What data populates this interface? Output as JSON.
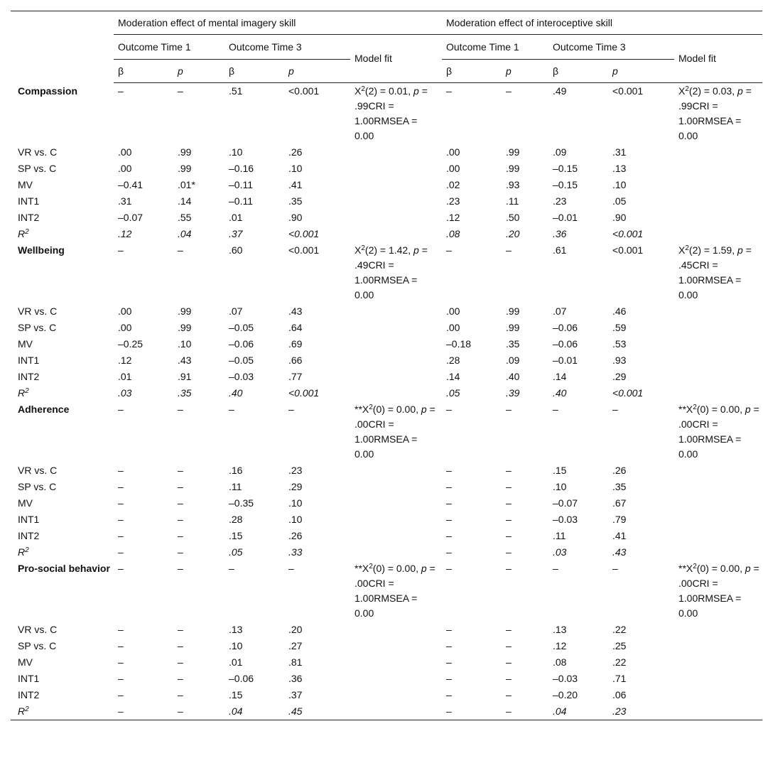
{
  "header": {
    "groups": [
      {
        "title": "Moderation effect of mental imagery skill",
        "outcomes": [
          "Outcome Time 1",
          "Outcome Time 3"
        ],
        "model_fit": "Model fit",
        "stats": [
          "β",
          "p",
          "β",
          "p"
        ]
      },
      {
        "title": "Moderation effect of interoceptive skill",
        "outcomes": [
          "Outcome Time 1",
          "Outcome Time 3"
        ],
        "model_fit": "Model fit",
        "stats": [
          "β",
          "p",
          "β",
          "p"
        ]
      }
    ]
  },
  "sections": [
    {
      "label": "Compassion",
      "cells": [
        "–",
        "–",
        ".51",
        "<0.001",
        "–",
        "–",
        ".49",
        "<0.001"
      ],
      "fit": [
        {
          "pre": "X",
          "sup": "2",
          "mid": "(2) = 0.01, ",
          "it": "p",
          "post": " = .99CRI = 1.00RMSEA = 0.00"
        },
        {
          "pre": "X",
          "sup": "2",
          "mid": "(2) = 0.03, ",
          "it": "p",
          "post": " = .99CRI = 1.00RMSEA = 0.00"
        }
      ],
      "rows": [
        {
          "label": "VR vs. C",
          "cells": [
            ".00",
            ".99",
            ".10",
            ".26",
            ".00",
            ".99",
            ".09",
            ".31"
          ]
        },
        {
          "label": "SP vs. C",
          "cells": [
            ".00",
            ".99",
            "–0.16",
            ".10",
            ".00",
            ".99",
            "–0.15",
            ".13"
          ]
        },
        {
          "label": "MV",
          "cells": [
            "–0.41",
            ".01*",
            "–0.11",
            ".41",
            ".02",
            ".93",
            "–0.15",
            ".10"
          ]
        },
        {
          "label": "INT1",
          "cells": [
            ".31",
            ".14",
            "–0.11",
            ".35",
            ".23",
            ".11",
            ".23",
            ".05"
          ]
        },
        {
          "label": "INT2",
          "cells": [
            "–0.07",
            ".55",
            ".01",
            ".90",
            ".12",
            ".50",
            "–0.01",
            ".90"
          ]
        },
        {
          "label": {
            "base": "R",
            "sup": "2"
          },
          "cells": [
            ".12",
            ".04",
            ".37",
            "<0.001",
            ".08",
            ".20",
            ".36",
            "<0.001"
          ]
        }
      ]
    },
    {
      "label": "Wellbeing",
      "cells": [
        "–",
        "–",
        ".60",
        "<0.001",
        "–",
        "–",
        ".61",
        "<0.001"
      ],
      "fit": [
        {
          "pre": "X",
          "sup": "2",
          "mid": "(2) = 1.42, ",
          "it": "p",
          "post": " = .49CRI = 1.00RMSEA = 0.00"
        },
        {
          "pre": "X",
          "sup": "2",
          "mid": "(2) = 1.59, ",
          "it": "p",
          "post": " = .45CRI = 1.00RMSEA = 0.00"
        }
      ],
      "rows": [
        {
          "label": "VR vs. C",
          "cells": [
            ".00",
            ".99",
            ".07",
            ".43",
            ".00",
            ".99",
            ".07",
            ".46"
          ]
        },
        {
          "label": "SP vs. C",
          "cells": [
            ".00",
            ".99",
            "–0.05",
            ".64",
            ".00",
            ".99",
            "–0.06",
            ".59"
          ]
        },
        {
          "label": "MV",
          "cells": [
            "–0.25",
            ".10",
            "–0.06",
            ".69",
            "–0.18",
            ".35",
            "–0.06",
            ".53"
          ]
        },
        {
          "label": "INT1",
          "cells": [
            ".12",
            ".43",
            "–0.05",
            ".66",
            ".28",
            ".09",
            "–0.01",
            ".93"
          ]
        },
        {
          "label": "INT2",
          "cells": [
            ".01",
            ".91",
            "–0.03",
            ".77",
            ".14",
            ".40",
            ".14",
            ".29"
          ]
        },
        {
          "label": {
            "base": "R",
            "sup": "2"
          },
          "cells": [
            ".03",
            ".35",
            ".40",
            "<0.001",
            ".05",
            ".39",
            ".40",
            "<0.001"
          ]
        }
      ]
    },
    {
      "label": "Adherence",
      "cells": [
        "–",
        "–",
        "–",
        "–",
        "–",
        "–",
        "–",
        "–"
      ],
      "fit": [
        {
          "pre": "**X",
          "sup": "2",
          "mid": "(0) = 0.00, ",
          "it": "p",
          "post": " = .00CRI = 1.00RMSEA = 0.00"
        },
        {
          "pre": "**X",
          "sup": "2",
          "mid": "(0) = 0.00, ",
          "it": "p",
          "post": " = .00CRI = 1.00RMSEA = 0.00"
        }
      ],
      "rows": [
        {
          "label": "VR vs. C",
          "cells": [
            "–",
            "–",
            ".16",
            ".23",
            "–",
            "–",
            ".15",
            ".26"
          ]
        },
        {
          "label": "SP vs. C",
          "cells": [
            "–",
            "–",
            ".11",
            ".29",
            "–",
            "–",
            ".10",
            ".35"
          ]
        },
        {
          "label": "MV",
          "cells": [
            "–",
            "–",
            "–0.35",
            ".10",
            "–",
            "–",
            "–0.07",
            ".67"
          ]
        },
        {
          "label": "INT1",
          "cells": [
            "–",
            "–",
            ".28",
            ".10",
            "–",
            "–",
            "–0.03",
            ".79"
          ]
        },
        {
          "label": "INT2",
          "cells": [
            "–",
            "–",
            ".15",
            ".26",
            "–",
            "–",
            ".11",
            ".41"
          ]
        },
        {
          "label": {
            "base": "R",
            "sup": "2"
          },
          "cells": [
            "–",
            "–",
            ".05",
            ".33",
            "–",
            "–",
            ".03",
            ".43"
          ]
        }
      ]
    },
    {
      "label": "Pro-social behavior",
      "cells": [
        "–",
        "–",
        "–",
        "–",
        "–",
        "–",
        "–",
        "–"
      ],
      "fit": [
        {
          "pre": "**X",
          "sup": "2",
          "mid": "(0) = 0.00, ",
          "it": "p",
          "post": " = .00CRI = 1.00RMSEA = 0.00"
        },
        {
          "pre": "**X",
          "sup": "2",
          "mid": "(0) = 0.00, ",
          "it": "p",
          "post": " = .00CRI = 1.00RMSEA = 0.00"
        }
      ],
      "rows": [
        {
          "label": "VR vs. C",
          "cells": [
            "–",
            "–",
            ".13",
            ".20",
            "–",
            "–",
            ".13",
            ".22"
          ]
        },
        {
          "label": "SP vs. C",
          "cells": [
            "–",
            "–",
            ".10",
            ".27",
            "–",
            "–",
            ".12",
            ".25"
          ]
        },
        {
          "label": "MV",
          "cells": [
            "–",
            "–",
            ".01",
            ".81",
            "–",
            "–",
            ".08",
            ".22"
          ]
        },
        {
          "label": "INT1",
          "cells": [
            "–",
            "–",
            "–0.06",
            ".36",
            "–",
            "–",
            "–0.03",
            ".71"
          ]
        },
        {
          "label": "INT2",
          "cells": [
            "–",
            "–",
            ".15",
            ".37",
            "–",
            "–",
            "–0.20",
            ".06"
          ]
        },
        {
          "label": {
            "base": "R",
            "sup": "2"
          },
          "cells": [
            "–",
            "–",
            ".04",
            ".45",
            "–",
            "–",
            ".04",
            ".23"
          ]
        }
      ]
    }
  ]
}
